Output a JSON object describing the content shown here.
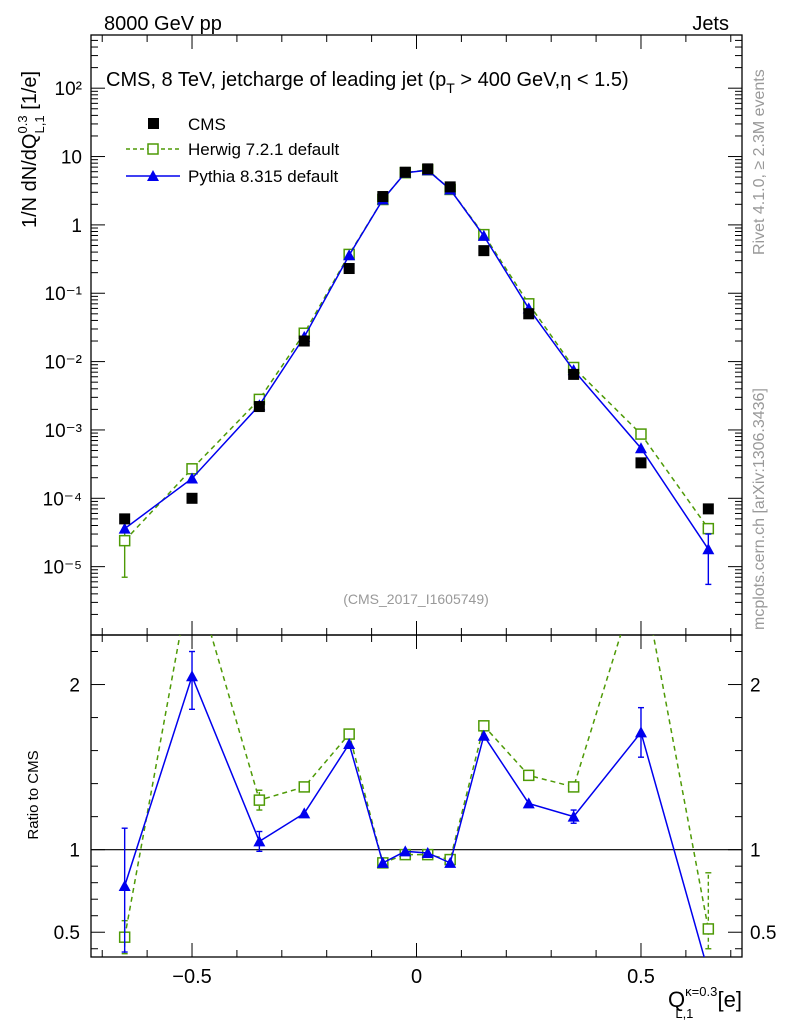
{
  "header": {
    "left": "8000 GeV pp",
    "right": "Jets"
  },
  "side_labels": {
    "rivet": "Rivet 4.1.0, ≥ 2.3M events",
    "mcplots": "mcplots.cern.ch [arXiv:1306.3436]"
  },
  "colors": {
    "cms": "#000000",
    "herwig": "#4e9a06",
    "pythia": "#0000ee",
    "watermark": "#999999"
  },
  "chart_data": [
    {
      "type": "scatter",
      "panel": "main",
      "title": "CMS, 8 TeV, jetcharge of leading jet (p_T > 400 GeV,η < 1.5)",
      "title_parts": {
        "pre": "CMS, 8 TeV, jetcharge of leading jet (p",
        "sub": "T",
        "post": " > 400 GeV,η < 1.5)"
      },
      "ylabel": "1/N dN/dQ^{0.3}_{L,1} [1/e]",
      "ylabel_parts": {
        "pre": "1/N dN/dQ",
        "sup": "0.3",
        "sub": "L,1",
        "post": " [1/e]"
      },
      "watermark": "(CMS_2017_I1605749)",
      "xlim": [
        -0.725,
        0.725
      ],
      "ylim": [
        1e-06,
        600
      ],
      "yscale": "log",
      "ytick_labels": [
        "10⁻⁵",
        "10⁻⁴",
        "10⁻³",
        "10⁻²",
        "10⁻¹",
        "1",
        "10",
        "10²"
      ],
      "ytick_values": [
        1e-05,
        0.0001,
        0.001,
        0.01,
        0.1,
        1,
        10,
        100
      ],
      "x": [
        -0.65,
        -0.5,
        -0.35,
        -0.25,
        -0.15,
        -0.075,
        -0.025,
        0.025,
        0.075,
        0.15,
        0.25,
        0.35,
        0.5,
        0.65
      ],
      "series": [
        {
          "name": "CMS",
          "style": "marker-square",
          "values": [
            5e-05,
            0.0001,
            0.0022,
            0.02,
            0.23,
            2.6,
            5.9,
            6.6,
            3.6,
            0.42,
            0.05,
            0.0065,
            0.00033,
            7e-05
          ]
        },
        {
          "name": "Herwig 7.2.1 default",
          "style": "dashed-open-square",
          "values": [
            2.4e-05,
            0.00027,
            0.0028,
            0.026,
            0.37,
            2.35,
            5.8,
            6.4,
            3.3,
            0.72,
            0.07,
            0.0082,
            0.00087,
            3.6e-05
          ],
          "yerr_low": [
            7e-06,
            null,
            null,
            null,
            null,
            null,
            null,
            null,
            null,
            null,
            null,
            null,
            null,
            null
          ],
          "yerr_high": [
            4.5e-05,
            null,
            null,
            null,
            null,
            null,
            null,
            null,
            null,
            null,
            null,
            null,
            null,
            null
          ]
        },
        {
          "name": "Pythia 8.315 default",
          "style": "solid-triangle",
          "values": [
            3.6e-05,
            0.000195,
            0.0023,
            0.023,
            0.36,
            2.35,
            5.8,
            6.3,
            3.3,
            0.69,
            0.06,
            0.0075,
            0.00054,
            1.8e-05
          ],
          "yerr_low": [
            null,
            null,
            null,
            null,
            null,
            null,
            null,
            null,
            null,
            null,
            null,
            null,
            null,
            5.5e-06
          ],
          "yerr_high": [
            null,
            null,
            null,
            null,
            null,
            null,
            null,
            null,
            null,
            null,
            null,
            null,
            null,
            3e-05
          ]
        }
      ]
    },
    {
      "type": "line",
      "panel": "ratio",
      "ylabel": "Ratio to CMS",
      "xlabel": "Q^{κ=0.3}_{L,1} [e]",
      "xlabel_parts": {
        "pre": "Q",
        "sup": "κ=0.3",
        "sub": "L,1",
        "post": " [e]"
      },
      "xlim": [
        -0.725,
        0.725
      ],
      "ylim": [
        0.35,
        2.3
      ],
      "reference_line": 1,
      "xtick_values": [
        -0.5,
        0,
        0.5
      ],
      "xtick_labels": [
        "−0.5",
        "0",
        "0.5"
      ],
      "ytick_values": [
        0.5,
        1,
        2
      ],
      "ytick_labels": [
        "0.5",
        "1",
        "2"
      ],
      "x": [
        -0.65,
        -0.5,
        -0.35,
        -0.25,
        -0.15,
        -0.075,
        -0.025,
        0.025,
        0.075,
        0.15,
        0.25,
        0.35,
        0.5,
        0.65
      ],
      "series": [
        {
          "name": "Herwig 7.2.1 default",
          "values": [
            0.47,
            2.7,
            1.3,
            1.38,
            1.7,
            0.92,
            0.97,
            0.97,
            0.94,
            1.75,
            1.45,
            1.38,
            2.7,
            0.52
          ],
          "yerr_low": [
            0.1,
            null,
            0.06,
            null,
            null,
            null,
            null,
            null,
            null,
            null,
            null,
            null,
            null,
            0.12
          ],
          "yerr_high": [
            0.1,
            null,
            0.06,
            null,
            null,
            null,
            null,
            null,
            null,
            null,
            null,
            null,
            null,
            0.34
          ]
        },
        {
          "name": "Pythia 8.315 default",
          "values": [
            0.78,
            2.05,
            1.05,
            1.22,
            1.64,
            0.92,
            0.99,
            0.98,
            0.92,
            1.69,
            1.28,
            1.2,
            1.71,
            0.26
          ],
          "yerr_low": [
            0.4,
            0.2,
            0.06,
            null,
            null,
            null,
            null,
            null,
            null,
            null,
            null,
            0.04,
            0.15,
            null
          ],
          "yerr_high": [
            0.35,
            0.15,
            0.06,
            null,
            null,
            null,
            null,
            null,
            null,
            null,
            null,
            0.04,
            0.15,
            null
          ]
        }
      ]
    }
  ]
}
